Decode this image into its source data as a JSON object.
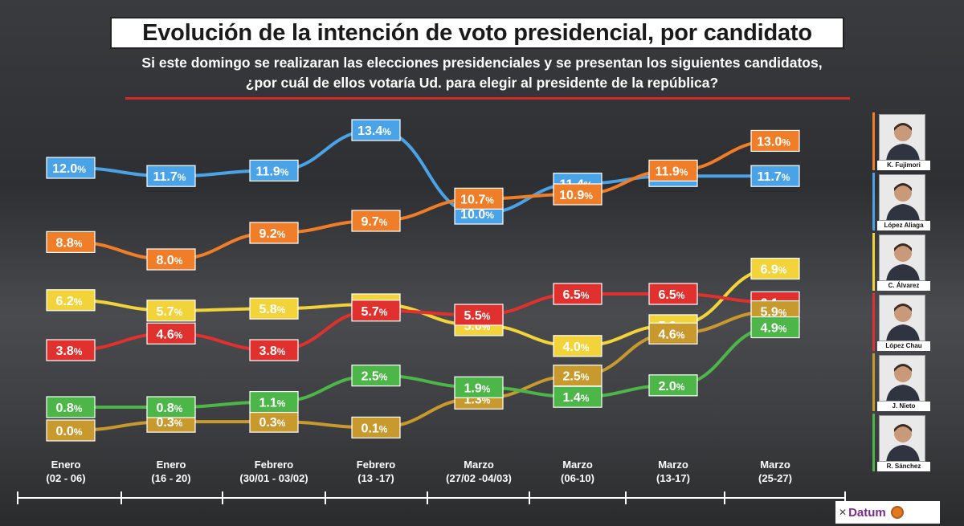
{
  "title": "Evolución de la intención de voto presidencial, por candidato",
  "subtitle_line1": "Si este domingo se realizaran las elecciones presidenciales y se presentan los siguientes candidatos,",
  "subtitle_line2": "¿por cuál de ellos votaría Ud. para elegir al presidente de la república?",
  "logo_text": "Datum",
  "colors": {
    "fujimori": "#f07d28",
    "lopez_aliaga": "#4aa3e6",
    "alvarez": "#f2d43a",
    "lopez_chau": "#e0312e",
    "nieto": "#c89a2e",
    "sanchez": "#4cb648",
    "title_rule": "#d42a2a"
  },
  "chart_data": {
    "type": "line",
    "categories": [
      {
        "line1": "Enero",
        "line2": "(02 - 06)"
      },
      {
        "line1": "Enero",
        "line2": "(16 - 20)"
      },
      {
        "line1": "Febrero",
        "line2": "(30/01 - 03/02)"
      },
      {
        "line1": "Febrero",
        "line2": "(13 -17)"
      },
      {
        "line1": "Marzo",
        "line2": "(27/02 -04/03)"
      },
      {
        "line1": "Marzo",
        "line2": "(06-10)"
      },
      {
        "line1": "Marzo",
        "line2": "(13-17)"
      },
      {
        "line1": "Marzo",
        "line2": "(25-27)"
      }
    ],
    "unit": "%",
    "series": [
      {
        "key": "lopez_aliaga",
        "name": "López Aliaga",
        "color": "#4aa3e6",
        "values": [
          12.0,
          11.7,
          11.9,
          13.4,
          10.0,
          11.4,
          11.7,
          11.7
        ]
      },
      {
        "key": "fujimori",
        "name": "K. Fujimori",
        "color": "#f07d28",
        "values": [
          8.8,
          8.0,
          9.2,
          9.7,
          10.7,
          10.9,
          11.9,
          13.0
        ]
      },
      {
        "key": "alvarez",
        "name": "C. Álvarez",
        "color": "#f2d43a",
        "values": [
          6.2,
          5.7,
          5.8,
          6.0,
          5.0,
          4.0,
          5.0,
          6.9
        ]
      },
      {
        "key": "lopez_chau",
        "name": "López Chau",
        "color": "#e0312e",
        "values": [
          3.8,
          4.6,
          3.8,
          5.7,
          5.5,
          6.5,
          6.5,
          6.1
        ]
      },
      {
        "key": "nieto",
        "name": "J. Nieto",
        "color": "#c89a2e",
        "values": [
          0.0,
          0.3,
          0.3,
          0.1,
          1.3,
          2.5,
          4.6,
          5.9
        ]
      },
      {
        "key": "sanchez",
        "name": "R. Sánchez",
        "color": "#4cb648",
        "values": [
          0.8,
          0.8,
          1.1,
          2.5,
          1.9,
          1.4,
          2.0,
          4.9
        ]
      }
    ],
    "labels": [
      [
        "12.0",
        "11.7",
        "11.9",
        "13.4",
        "10.0",
        "11.4",
        "11.7",
        "11.7"
      ],
      [
        "8.8",
        "8.0",
        "9.2",
        "9.7",
        "10.7",
        "10.9",
        "11.9",
        "13.0"
      ],
      [
        "6.2",
        "5.7",
        "5.8",
        "6.0",
        "5.0",
        "4.0",
        "5.0",
        "6.9"
      ],
      [
        "3.8",
        "4.6",
        "3.8",
        "5.7",
        "5.5",
        "6.5",
        "6.5",
        "6.1"
      ],
      [
        "0.0",
        "0.3",
        "0.3",
        "0.1",
        "1.3",
        "2.5",
        "4.6",
        "5.9"
      ],
      [
        "0.8",
        "0.8",
        "1.1",
        "2.5",
        "1.9",
        "1.4",
        "2.0",
        "4.9"
      ]
    ],
    "legend": {
      "placement": "right",
      "items": [
        {
          "name": "K. Fujimori",
          "color": "#f07d28"
        },
        {
          "name": "López Aliaga",
          "color": "#4aa3e6"
        },
        {
          "name": "C. Álvarez",
          "color": "#f2d43a"
        },
        {
          "name": "López Chau",
          "color": "#e0312e"
        },
        {
          "name": "J. Nieto",
          "color": "#c89a2e"
        },
        {
          "name": "R. Sánchez",
          "color": "#4cb648"
        }
      ]
    }
  }
}
